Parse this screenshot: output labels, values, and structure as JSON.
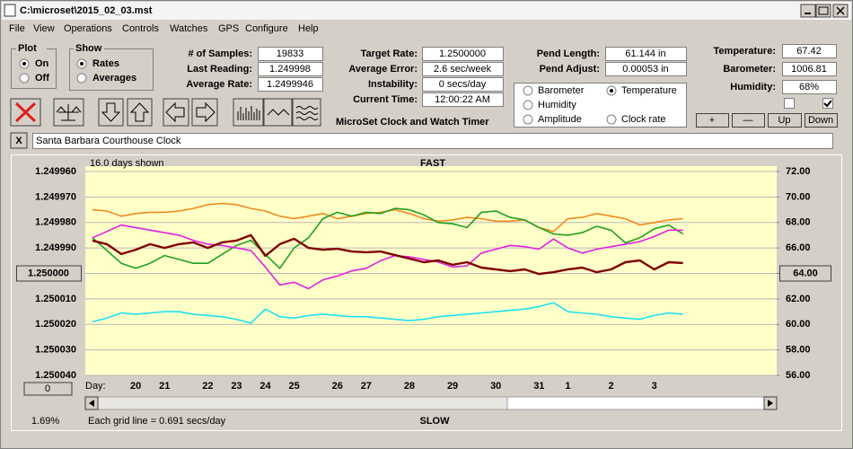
{
  "window": {
    "title": "C:\\microset\\2015_02_03.mst"
  },
  "menu": [
    "File",
    "View",
    "Operations",
    "Controls",
    "Watches",
    "GPS",
    "Configure",
    "Help"
  ],
  "plot_group": {
    "title": "Plot",
    "options": [
      "On",
      "Off"
    ],
    "selected": 0
  },
  "show_group": {
    "title": "Show",
    "options": [
      "Rates",
      "Averages"
    ],
    "selected": 0
  },
  "readouts": {
    "left": [
      {
        "label": "# of Samples:",
        "value": "19833"
      },
      {
        "label": "Last Reading:",
        "value": "1.249998"
      },
      {
        "label": "Average Rate:",
        "value": "1.2499946"
      }
    ],
    "middle": [
      {
        "label": "Target Rate:",
        "value": "1.2500000"
      },
      {
        "label": "Average Error:",
        "value": "2.6 sec/week"
      },
      {
        "label": "Instability:",
        "value": "0 secs/day"
      },
      {
        "label": "Current Time:",
        "value": "12:00:22 AM"
      }
    ],
    "pend": [
      {
        "label": "Pend Length:",
        "value": "61.144 in"
      },
      {
        "label": "Pend Adjust:",
        "value": "0.00053 in"
      }
    ],
    "weather": [
      {
        "label": "Temperature:",
        "value": "67.42"
      },
      {
        "label": "Barometer:",
        "value": "1006.81"
      },
      {
        "label": "Humidity:",
        "value": "68%"
      }
    ]
  },
  "app_name": "MicroSet Clock and Watch Timer",
  "checkboxes": [
    false,
    true
  ],
  "buttons": [
    "+",
    "—",
    "Up",
    "Down"
  ],
  "close_button": "X",
  "clock_name": "Santa Barbara Courthouse Clock",
  "chart_data": {
    "type": "line",
    "days_shown": "16.0 days shown",
    "top_label": "FAST",
    "bottom_label": "SLOW",
    "grid_note": "Each grid line = 0.691 secs/day",
    "percent": "1.69%",
    "offset_button": "0",
    "x_label": "Day:",
    "categories": [
      null,
      null,
      null,
      "20",
      null,
      "21",
      null,
      null,
      "22",
      null,
      "23",
      null,
      "24",
      null,
      "25",
      null,
      null,
      "26",
      null,
      "27",
      null,
      null,
      "28",
      null,
      null,
      "29",
      null,
      null,
      "30",
      null,
      null,
      "31",
      null,
      "1",
      null,
      null,
      "2",
      null,
      null,
      "3",
      null,
      null,
      null,
      null,
      null,
      null,
      null,
      null
    ],
    "ylim": [
      1.24996,
      1.25004
    ],
    "y_inverted": true,
    "yticks": [
      {
        "value": 1.24996,
        "label": "1.249960"
      },
      {
        "value": 1.24997,
        "label": "1.249970"
      },
      {
        "value": 1.24998,
        "label": "1.249980"
      },
      {
        "value": 1.24999,
        "label": "1.249990"
      },
      {
        "value": 1.25,
        "label": "1.250000"
      },
      {
        "value": 1.25001,
        "label": "1.250010"
      },
      {
        "value": 1.25002,
        "label": "1.250020"
      },
      {
        "value": 1.25003,
        "label": "1.250030"
      },
      {
        "value": 1.25004,
        "label": "1.250040"
      }
    ],
    "y2lim": [
      56,
      72
    ],
    "y2ticks": [
      {
        "value": 72,
        "label": "72.00"
      },
      {
        "value": 70,
        "label": "70.00"
      },
      {
        "value": 68,
        "label": "68.00"
      },
      {
        "value": 66,
        "label": "66.00"
      },
      {
        "value": 64,
        "label": "64.00"
      },
      {
        "value": 62,
        "label": "62.00"
      },
      {
        "value": 60,
        "label": "60.00"
      },
      {
        "value": 58,
        "label": "58.00"
      },
      {
        "value": 56,
        "label": "56.00"
      }
    ],
    "grid": true,
    "series": [
      {
        "name": "Barometer",
        "color": "#f08a20",
        "axis": "y2",
        "values": [
          69.0,
          68.9,
          68.5,
          68.7,
          68.8,
          68.8,
          68.9,
          69.1,
          69.4,
          69.5,
          69.4,
          69.1,
          68.9,
          68.5,
          68.3,
          68.5,
          68.7,
          68.3,
          68.5,
          68.7,
          68.8,
          69.0,
          68.7,
          68.3,
          68.1,
          68.2,
          68.4,
          68.3,
          68.1,
          68.1,
          68.2,
          67.6,
          67.3,
          68.3,
          68.4,
          68.7,
          68.5,
          68.3,
          67.8,
          68.0,
          68.2,
          68.3,
          null,
          null,
          null,
          null,
          null,
          null
        ]
      },
      {
        "name": "Temperature",
        "color": "#20a020",
        "axis": "y2",
        "selected": true,
        "values": [
          66.8,
          65.8,
          64.8,
          64.4,
          64.8,
          65.4,
          65.1,
          64.8,
          64.8,
          65.5,
          66.2,
          66.6,
          65.5,
          64.4,
          66.0,
          66.8,
          68.3,
          68.8,
          68.5,
          68.8,
          68.7,
          69.1,
          69.0,
          68.6,
          68.0,
          67.9,
          67.6,
          68.8,
          68.9,
          68.4,
          68.2,
          67.6,
          67.1,
          67.0,
          67.2,
          67.7,
          67.4,
          66.4,
          66.8,
          67.5,
          67.8,
          67.1,
          null,
          null,
          null,
          null,
          null,
          null
        ]
      },
      {
        "name": "Humidity",
        "color": "#e020e0",
        "axis": "y2",
        "values": [
          66.8,
          67.3,
          67.8,
          67.6,
          67.4,
          67.2,
          67.0,
          66.6,
          66.3,
          66.2,
          66.0,
          65.8,
          64.5,
          63.1,
          63.3,
          62.8,
          63.5,
          63.8,
          64.2,
          64.4,
          65.0,
          65.4,
          65.3,
          65.1,
          64.9,
          64.5,
          64.6,
          65.6,
          65.9,
          66.2,
          66.1,
          65.9,
          66.7,
          66.0,
          65.6,
          65.9,
          66.1,
          66.3,
          66.5,
          66.9,
          67.4,
          67.4,
          null,
          null,
          null,
          null,
          null,
          null
        ]
      },
      {
        "name": "Amplitude",
        "color": "#20e0f0",
        "axis": "y2",
        "values": [
          60.2,
          60.5,
          60.9,
          60.8,
          60.9,
          61.0,
          61.0,
          60.8,
          60.7,
          60.6,
          60.4,
          60.1,
          61.2,
          60.6,
          60.5,
          60.7,
          60.8,
          60.7,
          60.6,
          60.6,
          60.5,
          60.4,
          60.3,
          60.4,
          60.6,
          60.7,
          60.8,
          60.9,
          61.0,
          61.1,
          61.2,
          61.4,
          61.7,
          61.0,
          60.9,
          60.8,
          60.6,
          60.5,
          60.4,
          60.7,
          60.9,
          60.8,
          null,
          null,
          null,
          null,
          null,
          null
        ]
      },
      {
        "name": "Clock rate",
        "color": "#800000",
        "values": [
          1.2499871,
          1.2499885,
          1.2499924,
          1.2499907,
          1.2499885,
          1.24999,
          1.2499885,
          1.2499878,
          1.24999,
          1.2499878,
          1.2499871,
          1.249985,
          1.2499931,
          1.2499885,
          1.2499864,
          1.24999,
          1.2499907,
          1.2499903,
          1.2499914,
          1.2499917,
          1.2499914,
          1.2499928,
          1.2499942,
          1.2499956,
          1.2499949,
          1.2499966,
          1.2499956,
          1.2499977,
          1.2499984,
          1.2499991,
          1.2499984,
          1.2500002,
          1.2499995,
          1.2499984,
          1.2499977,
          1.2499995,
          1.2499984,
          1.2499956,
          1.2499949,
          1.2499984,
          1.2499956,
          1.2499959,
          null,
          null,
          null,
          null,
          null,
          null
        ]
      }
    ]
  }
}
